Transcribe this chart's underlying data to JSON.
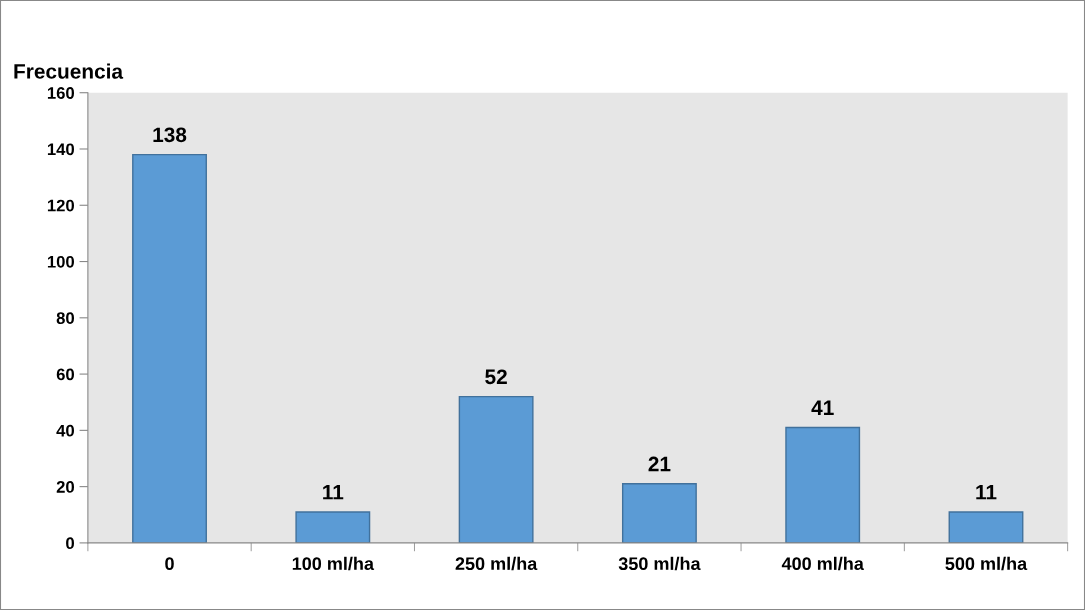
{
  "chart_data": {
    "type": "bar",
    "ylabel": "Frecuencia",
    "categories": [
      "0",
      "100 ml/ha",
      "250 ml/ha",
      "350 ml/ha",
      "400 ml/ha",
      "500 ml/ha"
    ],
    "values": [
      138,
      11,
      52,
      21,
      41,
      11
    ],
    "color": "#5b9bd5",
    "ylim": [
      0,
      160
    ],
    "yticks": [
      0,
      20,
      40,
      60,
      80,
      100,
      120,
      140,
      160
    ],
    "data_labels": true,
    "grid": false,
    "legend": false
  }
}
